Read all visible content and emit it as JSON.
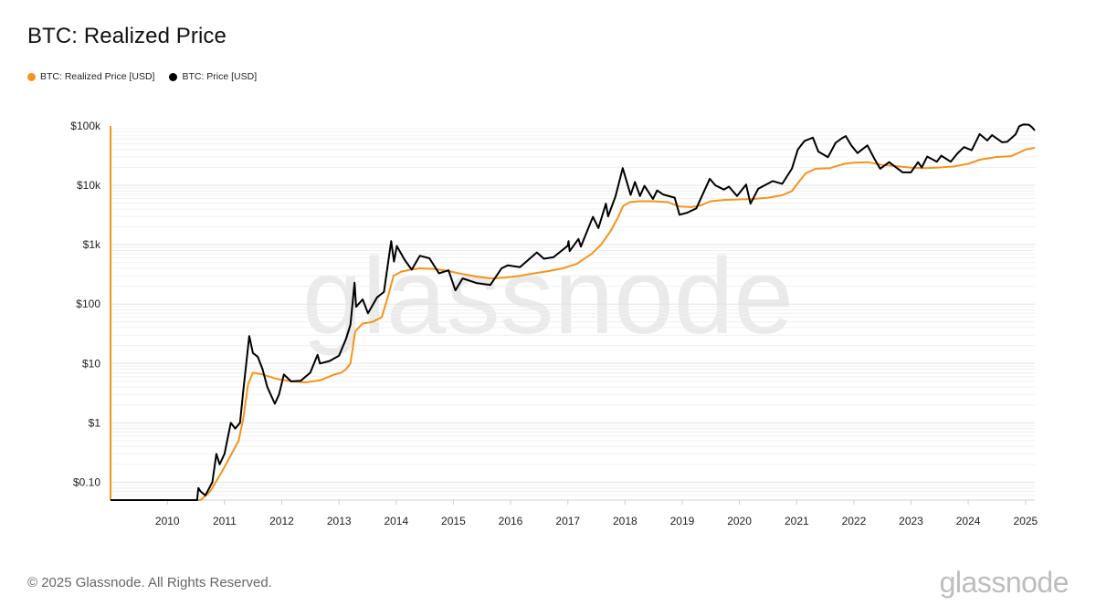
{
  "title": "BTC: Realized Price",
  "legend": [
    {
      "label": "BTC: Realized Price [USD]",
      "color": "#f7931a"
    },
    {
      "label": "BTC: Price [USD]",
      "color": "#000000"
    }
  ],
  "copyright": "© 2025 Glassnode. All Rights Reserved.",
  "brand": "glassnode",
  "watermark": "glassnode",
  "chart_data": {
    "type": "line",
    "title": "BTC: Realized Price",
    "xlabel": "",
    "ylabel": "",
    "y_scale": "log",
    "ylim": [
      0.05,
      100000
    ],
    "xlim": [
      "2009-01-03",
      "2025-03-01"
    ],
    "grid": true,
    "legend_position": "top-left",
    "x_ticks": [
      "2010",
      "2011",
      "2012",
      "2013",
      "2014",
      "2015",
      "2016",
      "2017",
      "2018",
      "2019",
      "2020",
      "2021",
      "2022",
      "2023",
      "2024",
      "2025"
    ],
    "y_ticks": [
      {
        "value": 0.1,
        "label": "$0.10"
      },
      {
        "value": 1,
        "label": "$1"
      },
      {
        "value": 10,
        "label": "$10"
      },
      {
        "value": 100,
        "label": "$100"
      },
      {
        "value": 1000,
        "label": "$1k"
      },
      {
        "value": 10000,
        "label": "$10k"
      },
      {
        "value": 100000,
        "label": "$100k"
      }
    ],
    "series": [
      {
        "name": "BTC: Realized Price [USD]",
        "color": "#f7931a",
        "points": [
          [
            "2009-01-03",
            0.05
          ],
          [
            "2010-08-01",
            0.05
          ],
          [
            "2010-10-01",
            0.07
          ],
          [
            "2010-12-15",
            0.15
          ],
          [
            "2011-02-15",
            0.3
          ],
          [
            "2011-04-01",
            0.5
          ],
          [
            "2011-05-01",
            1.2
          ],
          [
            "2011-06-01",
            4.5
          ],
          [
            "2011-07-01",
            7
          ],
          [
            "2011-09-01",
            6.5
          ],
          [
            "2011-12-01",
            5.5
          ],
          [
            "2012-03-01",
            5
          ],
          [
            "2012-06-01",
            4.8
          ],
          [
            "2012-09-01",
            5.2
          ],
          [
            "2012-12-01",
            6.5
          ],
          [
            "2013-01-15",
            7
          ],
          [
            "2013-02-15",
            8
          ],
          [
            "2013-03-15",
            10
          ],
          [
            "2013-04-15",
            35
          ],
          [
            "2013-06-01",
            47
          ],
          [
            "2013-08-01",
            50
          ],
          [
            "2013-10-01",
            60
          ],
          [
            "2013-11-15",
            150
          ],
          [
            "2013-12-15",
            300
          ],
          [
            "2014-02-01",
            350
          ],
          [
            "2014-04-01",
            380
          ],
          [
            "2014-06-01",
            400
          ],
          [
            "2014-09-01",
            390
          ],
          [
            "2014-12-01",
            360
          ],
          [
            "2015-03-01",
            320
          ],
          [
            "2015-06-01",
            290
          ],
          [
            "2015-09-01",
            270
          ],
          [
            "2015-12-01",
            280
          ],
          [
            "2016-03-01",
            300
          ],
          [
            "2016-06-01",
            330
          ],
          [
            "2016-09-01",
            360
          ],
          [
            "2016-12-01",
            400
          ],
          [
            "2017-03-01",
            480
          ],
          [
            "2017-06-01",
            700
          ],
          [
            "2017-08-01",
            1000
          ],
          [
            "2017-10-01",
            1700
          ],
          [
            "2017-11-15",
            2800
          ],
          [
            "2017-12-20",
            4500
          ],
          [
            "2018-02-01",
            5200
          ],
          [
            "2018-04-01",
            5400
          ],
          [
            "2018-07-01",
            5400
          ],
          [
            "2018-10-01",
            5200
          ],
          [
            "2018-12-15",
            4400
          ],
          [
            "2019-03-01",
            4300
          ],
          [
            "2019-05-01",
            4600
          ],
          [
            "2019-07-01",
            5400
          ],
          [
            "2019-10-01",
            5700
          ],
          [
            "2020-01-01",
            5800
          ],
          [
            "2020-04-01",
            5900
          ],
          [
            "2020-07-01",
            6200
          ],
          [
            "2020-10-01",
            6800
          ],
          [
            "2020-12-01",
            8000
          ],
          [
            "2021-01-15",
            11500
          ],
          [
            "2021-03-01",
            16000
          ],
          [
            "2021-05-01",
            19000
          ],
          [
            "2021-08-01",
            19500
          ],
          [
            "2021-11-01",
            23000
          ],
          [
            "2022-01-01",
            24000
          ],
          [
            "2022-04-01",
            24500
          ],
          [
            "2022-07-01",
            22000
          ],
          [
            "2022-10-01",
            21000
          ],
          [
            "2023-01-01",
            19800
          ],
          [
            "2023-04-01",
            19500
          ],
          [
            "2023-07-01",
            20000
          ],
          [
            "2023-10-01",
            20800
          ],
          [
            "2024-01-01",
            23000
          ],
          [
            "2024-03-15",
            27000
          ],
          [
            "2024-07-01",
            30000
          ],
          [
            "2024-10-01",
            31000
          ],
          [
            "2024-11-15",
            35000
          ],
          [
            "2025-01-01",
            40000
          ],
          [
            "2025-03-01",
            43000
          ]
        ]
      },
      {
        "name": "BTC: Price [USD]",
        "color": "#000000",
        "points": [
          [
            "2009-01-03",
            0.05
          ],
          [
            "2010-07-10",
            0.05
          ],
          [
            "2010-07-18",
            0.08
          ],
          [
            "2010-08-01",
            0.07
          ],
          [
            "2010-09-01",
            0.06
          ],
          [
            "2010-10-15",
            0.1
          ],
          [
            "2010-11-10",
            0.3
          ],
          [
            "2010-12-01",
            0.2
          ],
          [
            "2011-01-01",
            0.3
          ],
          [
            "2011-02-10",
            1.0
          ],
          [
            "2011-03-10",
            0.8
          ],
          [
            "2011-04-10",
            1.0
          ],
          [
            "2011-05-01",
            3.5
          ],
          [
            "2011-06-08",
            29
          ],
          [
            "2011-07-01",
            15
          ],
          [
            "2011-08-01",
            13
          ],
          [
            "2011-09-01",
            8
          ],
          [
            "2011-10-01",
            4
          ],
          [
            "2011-11-18",
            2.1
          ],
          [
            "2011-12-15",
            3
          ],
          [
            "2012-01-15",
            6.5
          ],
          [
            "2012-03-01",
            5
          ],
          [
            "2012-05-01",
            5.1
          ],
          [
            "2012-07-01",
            7
          ],
          [
            "2012-08-17",
            14
          ],
          [
            "2012-09-01",
            10
          ],
          [
            "2012-11-01",
            11
          ],
          [
            "2013-01-01",
            13.5
          ],
          [
            "2013-02-15",
            26
          ],
          [
            "2013-03-15",
            45
          ],
          [
            "2013-04-10",
            230
          ],
          [
            "2013-04-20",
            90
          ],
          [
            "2013-06-01",
            120
          ],
          [
            "2013-07-05",
            70
          ],
          [
            "2013-09-01",
            130
          ],
          [
            "2013-10-15",
            160
          ],
          [
            "2013-11-30",
            1150
          ],
          [
            "2013-12-18",
            520
          ],
          [
            "2014-01-05",
            950
          ],
          [
            "2014-02-25",
            550
          ],
          [
            "2014-04-10",
            380
          ],
          [
            "2014-06-01",
            650
          ],
          [
            "2014-08-01",
            590
          ],
          [
            "2014-10-01",
            330
          ],
          [
            "2014-12-01",
            370
          ],
          [
            "2015-01-14",
            170
          ],
          [
            "2015-03-01",
            270
          ],
          [
            "2015-06-01",
            225
          ],
          [
            "2015-08-25",
            210
          ],
          [
            "2015-11-05",
            400
          ],
          [
            "2015-12-15",
            450
          ],
          [
            "2016-03-01",
            420
          ],
          [
            "2016-06-17",
            740
          ],
          [
            "2016-08-01",
            580
          ],
          [
            "2016-10-01",
            615
          ],
          [
            "2016-12-31",
            960
          ],
          [
            "2017-01-05",
            1150
          ],
          [
            "2017-01-12",
            780
          ],
          [
            "2017-03-10",
            1250
          ],
          [
            "2017-03-25",
            930
          ],
          [
            "2017-06-10",
            2950
          ],
          [
            "2017-07-15",
            1900
          ],
          [
            "2017-09-01",
            4900
          ],
          [
            "2017-09-15",
            3000
          ],
          [
            "2017-11-01",
            6500
          ],
          [
            "2017-12-17",
            19500
          ],
          [
            "2018-02-06",
            6900
          ],
          [
            "2018-03-05",
            11400
          ],
          [
            "2018-04-06",
            6600
          ],
          [
            "2018-05-05",
            9800
          ],
          [
            "2018-06-28",
            5900
          ],
          [
            "2018-07-25",
            8200
          ],
          [
            "2018-09-01",
            7000
          ],
          [
            "2018-11-14",
            6200
          ],
          [
            "2018-12-15",
            3200
          ],
          [
            "2019-02-01",
            3450
          ],
          [
            "2019-04-01",
            4100
          ],
          [
            "2019-06-26",
            12900
          ],
          [
            "2019-08-01",
            10000
          ],
          [
            "2019-09-24",
            8500
          ],
          [
            "2019-10-26",
            9500
          ],
          [
            "2019-12-17",
            6600
          ],
          [
            "2020-02-13",
            10300
          ],
          [
            "2020-03-12",
            4900
          ],
          [
            "2020-05-01",
            8800
          ],
          [
            "2020-08-01",
            11800
          ],
          [
            "2020-10-01",
            10600
          ],
          [
            "2020-12-01",
            19000
          ],
          [
            "2021-01-08",
            40000
          ],
          [
            "2021-02-20",
            56000
          ],
          [
            "2021-04-14",
            63500
          ],
          [
            "2021-05-19",
            37000
          ],
          [
            "2021-07-20",
            29800
          ],
          [
            "2021-09-06",
            52000
          ],
          [
            "2021-10-20",
            63000
          ],
          [
            "2021-11-10",
            67500
          ],
          [
            "2021-12-15",
            47000
          ],
          [
            "2022-01-24",
            35000
          ],
          [
            "2022-03-28",
            47000
          ],
          [
            "2022-05-12",
            28000
          ],
          [
            "2022-06-18",
            19000
          ],
          [
            "2022-08-14",
            24500
          ],
          [
            "2022-11-09",
            16500
          ],
          [
            "2022-12-31",
            16500
          ],
          [
            "2023-02-15",
            24500
          ],
          [
            "2023-03-10",
            20000
          ],
          [
            "2023-04-14",
            30500
          ],
          [
            "2023-06-15",
            25000
          ],
          [
            "2023-07-13",
            31500
          ],
          [
            "2023-09-11",
            25000
          ],
          [
            "2023-10-24",
            34500
          ],
          [
            "2023-12-05",
            44000
          ],
          [
            "2024-01-23",
            39000
          ],
          [
            "2024-03-14",
            73000
          ],
          [
            "2024-05-01",
            57000
          ],
          [
            "2024-06-01",
            70000
          ],
          [
            "2024-08-05",
            53000
          ],
          [
            "2024-09-06",
            54000
          ],
          [
            "2024-10-29",
            72000
          ],
          [
            "2024-11-22",
            99000
          ],
          [
            "2024-12-17",
            106000
          ],
          [
            "2025-01-21",
            105000
          ],
          [
            "2025-02-10",
            96000
          ],
          [
            "2025-03-01",
            84000
          ]
        ]
      }
    ]
  }
}
